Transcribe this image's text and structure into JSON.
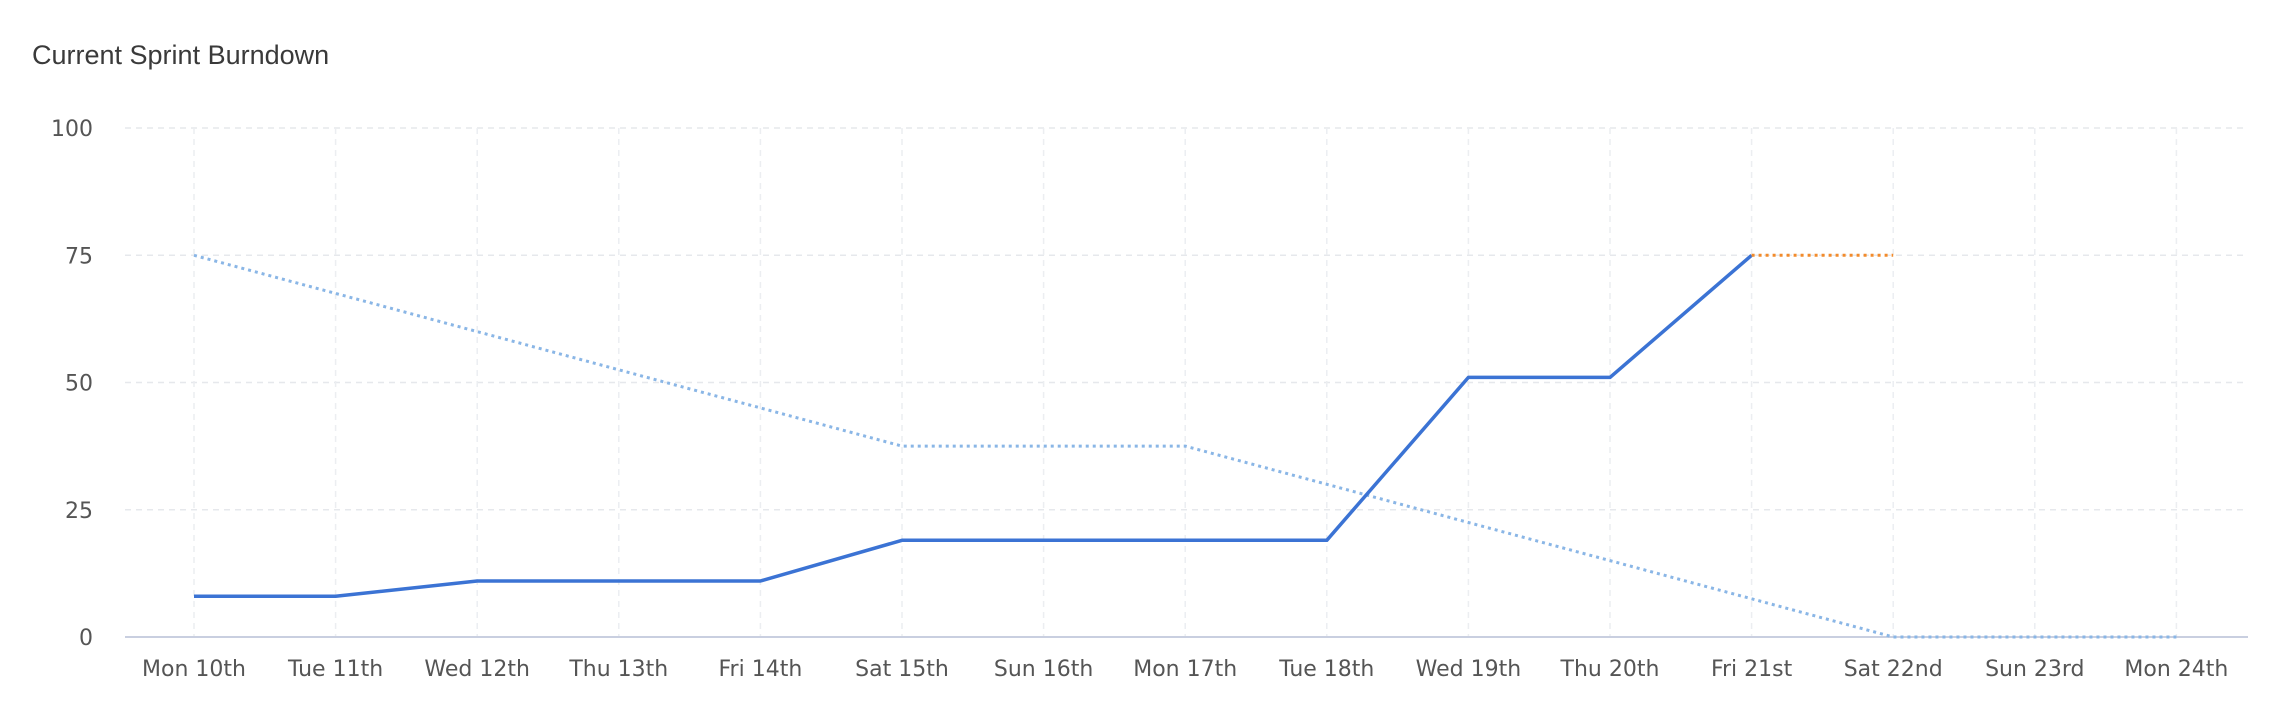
{
  "chart_data": {
    "type": "line",
    "title": "Current Sprint Burndown",
    "xlabel": "",
    "ylabel": "",
    "categories": [
      "Mon 10th",
      "Tue 11th",
      "Wed 12th",
      "Thu 13th",
      "Fri 14th",
      "Sat 15th",
      "Sun 16th",
      "Mon 17th",
      "Tue 18th",
      "Wed 19th",
      "Thu 20th",
      "Fri 21st",
      "Sat 22nd",
      "Sun 23rd",
      "Mon 24th"
    ],
    "ylim": [
      0,
      100
    ],
    "yticks": [
      "0",
      "25",
      "50",
      "75",
      "100"
    ],
    "grid": true,
    "legend": "none",
    "series": [
      {
        "values": [
          75,
          67.5,
          60,
          52.5,
          45,
          37.5,
          37.5,
          37.5,
          30,
          22.5,
          15,
          7.5,
          0,
          0,
          0
        ],
        "color": "#8ab6e6",
        "style": "dotted"
      },
      {
        "values": [
          8,
          8,
          11,
          11,
          11,
          19,
          19,
          19,
          19,
          51,
          51,
          75,
          null,
          null,
          null
        ],
        "color": "#3b73d4",
        "style": "solid"
      },
      {
        "values": [
          null,
          null,
          null,
          null,
          null,
          null,
          null,
          null,
          null,
          null,
          null,
          75,
          75,
          null,
          null
        ],
        "color": "#f28b2c",
        "style": "dotted"
      }
    ]
  }
}
